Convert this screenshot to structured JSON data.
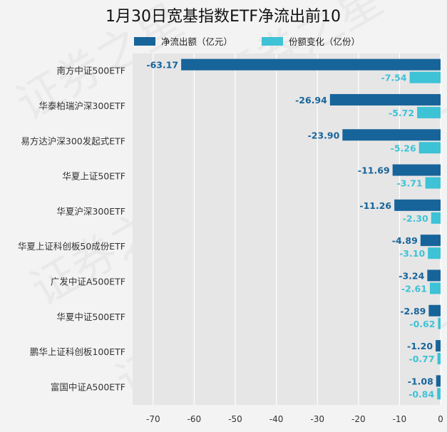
{
  "chart_data": {
    "type": "bar",
    "orientation": "horizontal",
    "title": "1月30日宽基指数ETF净流出前10",
    "categories": [
      "南方中证500ETF",
      "华泰柏瑞沪深300ETF",
      "易方达沪深300发起式ETF",
      "华夏上证50ETF",
      "华夏沪深300ETF",
      "华夏上证科创板50成份ETF",
      "广发中证A500ETF",
      "华夏中证500ETF",
      "鹏华上证科创板100ETF",
      "富国中证A500ETF"
    ],
    "series": [
      {
        "name": "净流出额（亿元）",
        "color": "#17649a",
        "values": [
          -63.17,
          -26.94,
          -23.9,
          -11.69,
          -11.26,
          -4.89,
          -3.24,
          -2.89,
          -1.2,
          -1.08
        ],
        "labels": [
          "-63.17",
          "-26.94",
          "-23.90",
          "-11.69",
          "-11.26",
          "-4.89",
          "-3.24",
          "-2.89",
          "-1.20",
          "-1.08"
        ]
      },
      {
        "name": "份额变化（亿份）",
        "color": "#3ec2d6",
        "values": [
          -7.54,
          -5.72,
          -5.26,
          -3.71,
          -2.3,
          -3.1,
          -2.61,
          -0.62,
          -0.77,
          -0.84
        ],
        "labels": [
          "-7.54",
          "-5.72",
          "-5.26",
          "-3.71",
          "-2.30",
          "-3.10",
          "-2.61",
          "-0.62",
          "-0.77",
          "-0.84"
        ]
      }
    ],
    "xlim": [
      -75,
      0
    ],
    "xticks": [
      -70,
      -60,
      -50,
      -40,
      -30,
      -20,
      -10,
      0
    ],
    "xlabel": "",
    "ylabel": "",
    "grid": true,
    "legend_position": "top"
  },
  "watermark_text": "证券之星"
}
